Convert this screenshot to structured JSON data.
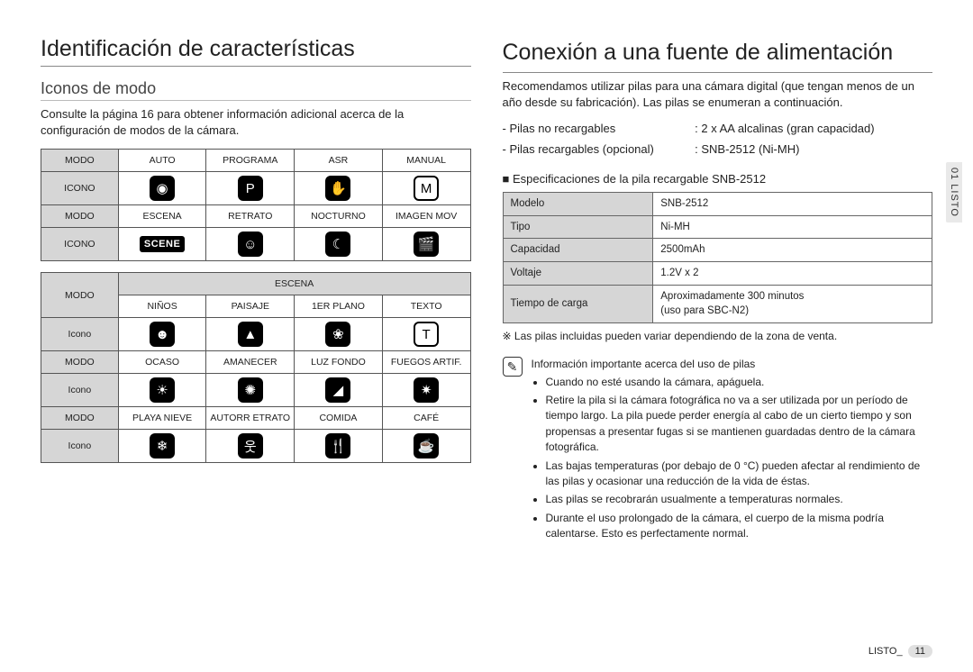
{
  "left": {
    "title": "Identificación de características",
    "subtitle": "Iconos de modo",
    "intro": "Consulte la página 16 para obtener información adicional acerca de la configuración de modos de la cámara.",
    "table1": {
      "row1_hdr": "MODO",
      "row1": [
        "AUTO",
        "PROGRAMA",
        "ASR",
        "MANUAL"
      ],
      "row2_hdr": "ICONO",
      "row2_icons": [
        "camera",
        "program",
        "asr",
        "manual"
      ],
      "row3_hdr": "MODO",
      "row3": [
        "ESCENA",
        "RETRATO",
        "NOCTURNO",
        "IMAGEN MOV"
      ],
      "row4_hdr": "ICONO",
      "row4_icons": [
        "scene",
        "portrait",
        "night",
        "movie"
      ]
    },
    "table2": {
      "row1_hdr": "MODO",
      "row1_span": "ESCENA",
      "row2": [
        "NIÑOS",
        "PAISAJE",
        "1ER PLANO",
        "TEXTO"
      ],
      "row3_hdr": "Icono",
      "row3_icons": [
        "kids",
        "landscape",
        "closeup",
        "text"
      ],
      "row4_hdr": "MODO",
      "row4": [
        "OCASO",
        "AMANECER",
        "LUZ FONDO",
        "FUEGOS ARTIF."
      ],
      "row5_hdr": "Icono",
      "row5_icons": [
        "sunset",
        "dawn",
        "backlight",
        "fireworks"
      ],
      "row6_hdr": "MODO",
      "row6": [
        "PLAYA NIEVE",
        "AUTORR ETRATO",
        "COMIDA",
        "CAFÉ"
      ],
      "row7_hdr": "Icono",
      "row7_icons": [
        "beach",
        "selfportrait",
        "food",
        "cafe"
      ]
    }
  },
  "right": {
    "title": "Conexión a una fuente de alimentación",
    "body1": "Recomendamos utilizar pilas para una cámara digital (que tengan menos de un año desde su fabricación). Las pilas se enumeran a continuación.",
    "batt1_label": "- Pilas no recargables",
    "batt1_value": ": 2 x AA alcalinas (gran capacidad)",
    "batt2_label": "- Pilas recargables (opcional)",
    "batt2_value": ": SNB-2512 (Ni-MH)",
    "spec_title": "Especificaciones de la pila recargable SNB-2512",
    "spec_rows": [
      {
        "k": "Modelo",
        "v": "SNB-2512"
      },
      {
        "k": "Tipo",
        "v": "Ni-MH"
      },
      {
        "k": "Capacidad",
        "v": "2500mAh"
      },
      {
        "k": "Voltaje",
        "v": "1.2V x 2"
      },
      {
        "k": "Tiempo de carga",
        "v": "Aproximadamente 300 minutos\n(uso para SBC-N2)"
      }
    ],
    "note": "Las pilas incluidas pueden variar dependiendo de la zona de venta.",
    "info_heading": "Información importante acerca del uso de pilas",
    "info_items": [
      "Cuando no esté usando la cámara, apáguela.",
      "Retire la pila si la cámara fotográfica no va a ser utilizada por un período de tiempo largo. La pila puede perder energía al cabo de un cierto tiempo y son propensas a presentar fugas si se mantienen guardadas dentro de la cámara fotográfica.",
      "Las bajas temperaturas (por debajo de 0 °C) pueden afectar al rendimiento de las pilas y ocasionar una reducción de la vida de éstas.",
      "Las pilas se recobrarán usualmente a temperaturas normales.",
      "Durante el uso prolongado de la cámara, el cuerpo de la misma podría calentarse. Esto es perfectamente normal."
    ]
  },
  "side_tab": "01 LISTO",
  "footer_label": "LISTO_",
  "footer_page": "11",
  "icon_glyphs": {
    "camera": "◉",
    "program": "P",
    "asr": "✋",
    "manual": "M",
    "scene": "SCENE",
    "portrait": "☺",
    "night": "☾",
    "movie": "🎬",
    "kids": "☻",
    "landscape": "▲",
    "closeup": "❀",
    "text": "T",
    "sunset": "☀",
    "dawn": "✺",
    "backlight": "◢",
    "fireworks": "✷",
    "beach": "❄",
    "selfportrait": "웃",
    "food": "🍴",
    "cafe": "☕"
  },
  "icon_variant": {
    "manual": "wht",
    "text": "wht"
  },
  "colors": {
    "border": "#555",
    "header_bg": "#d6d6d6",
    "text": "#222",
    "side_bg": "#e9e9e9"
  }
}
